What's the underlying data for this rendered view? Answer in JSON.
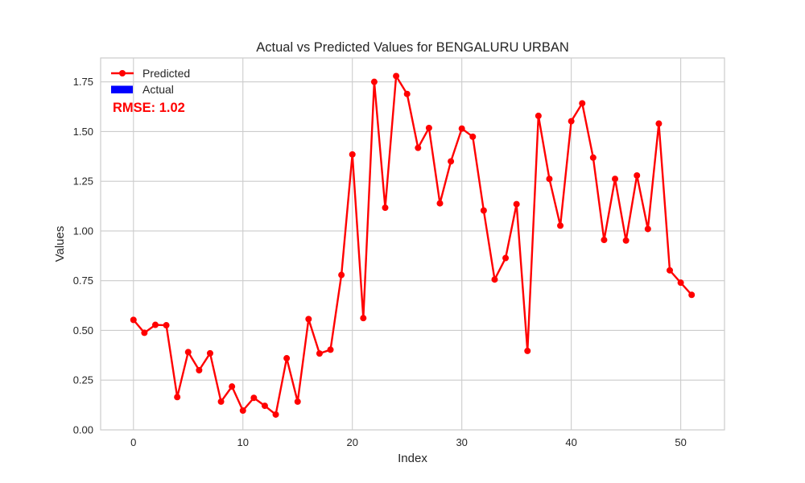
{
  "chart_data": {
    "type": "line",
    "title": "Actual vs Predicted Values for BENGALURU URBAN",
    "xlabel": "Index",
    "ylabel": "Values",
    "xlim": [
      -3,
      54
    ],
    "ylim": [
      0,
      1.87
    ],
    "x_ticks": [
      0,
      10,
      20,
      30,
      40,
      50
    ],
    "y_ticks": [
      0.0,
      0.25,
      0.5,
      0.75,
      1.0,
      1.25,
      1.5,
      1.75
    ],
    "x_tick_labels": [
      "0",
      "10",
      "20",
      "30",
      "40",
      "50"
    ],
    "y_tick_labels": [
      "0.00",
      "0.25",
      "0.50",
      "0.75",
      "1.00",
      "1.25",
      "1.50",
      "1.75"
    ],
    "grid": true,
    "legend_position": "top-left",
    "annotation": "RMSE: 1.02",
    "series": [
      {
        "name": "Predicted",
        "color": "#ff0000",
        "style": "line-with-markers",
        "x": [
          0,
          1,
          2,
          3,
          4,
          5,
          6,
          7,
          8,
          9,
          10,
          11,
          12,
          13,
          14,
          15,
          16,
          17,
          18,
          19,
          20,
          21,
          22,
          23,
          24,
          25,
          26,
          27,
          28,
          29,
          30,
          31,
          32,
          33,
          34,
          35,
          36,
          37,
          38,
          39,
          40,
          41,
          42,
          43,
          44,
          45,
          46,
          47,
          48,
          49,
          50,
          51
        ],
        "values": [
          0.553,
          0.488,
          0.528,
          0.526,
          0.165,
          0.391,
          0.3,
          0.385,
          0.142,
          0.218,
          0.097,
          0.161,
          0.121,
          0.077,
          0.36,
          0.142,
          0.557,
          0.384,
          0.403,
          0.779,
          1.385,
          0.562,
          1.75,
          1.117,
          1.779,
          1.689,
          1.418,
          1.518,
          1.139,
          1.35,
          1.515,
          1.474,
          1.103,
          0.756,
          0.864,
          1.135,
          0.397,
          1.579,
          1.262,
          1.027,
          1.552,
          1.642,
          1.369,
          0.955,
          1.262,
          0.952,
          1.279,
          1.01,
          1.54,
          0.802,
          0.74,
          0.679
        ]
      },
      {
        "name": "Actual",
        "color": "#0000ff",
        "style": "bar",
        "x": [],
        "values": []
      }
    ]
  }
}
